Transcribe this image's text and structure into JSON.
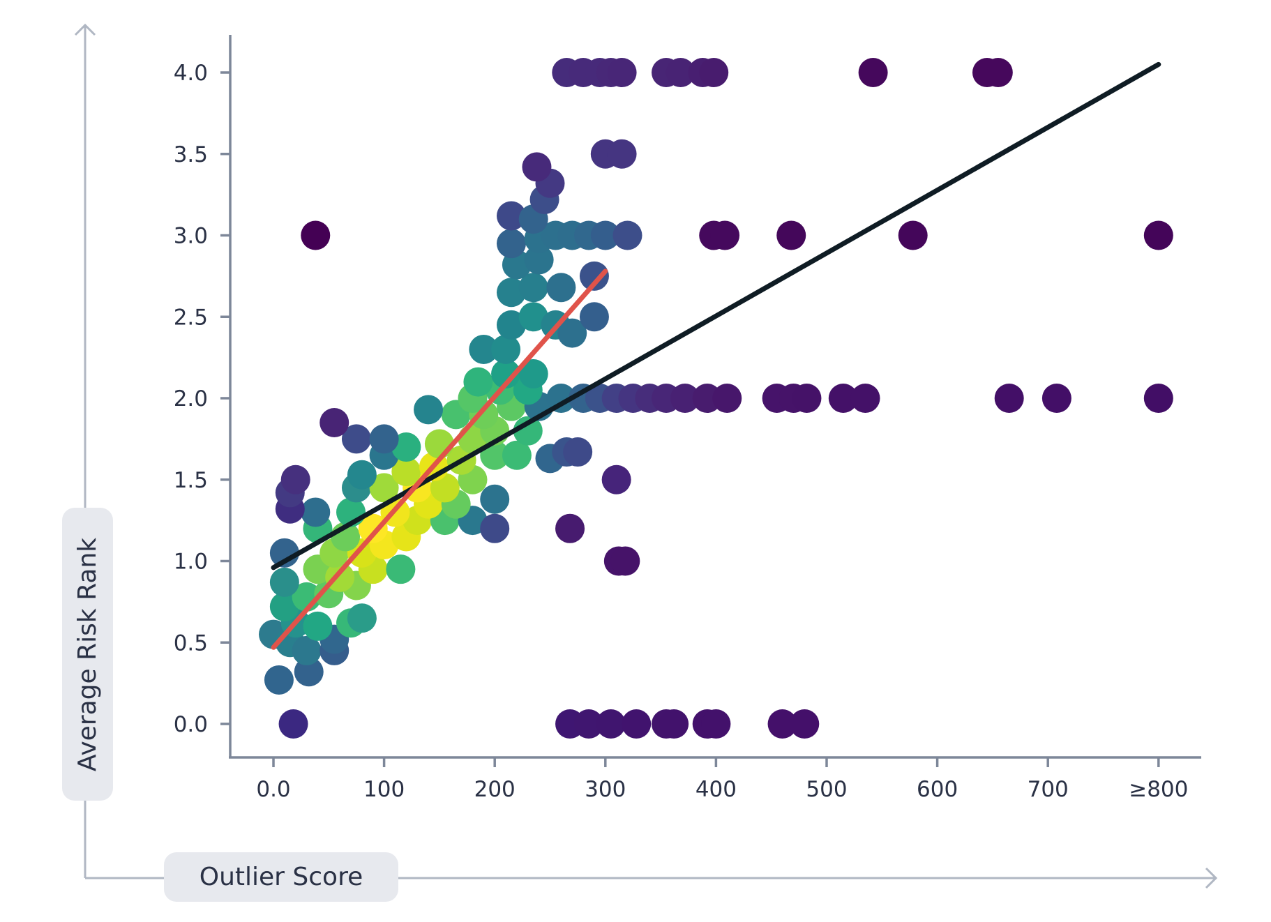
{
  "chart_data": {
    "type": "scatter",
    "title": "",
    "xlabel": "Outlier Score",
    "ylabel": "Average Risk Rank",
    "x_ticks": [
      0,
      100,
      200,
      300,
      400,
      500,
      600,
      700,
      800
    ],
    "x_tick_labels": [
      "0.0",
      "100",
      "200",
      "300",
      "400",
      "500",
      "600",
      "700",
      "≥800"
    ],
    "y_ticks": [
      0.0,
      0.5,
      1.0,
      1.5,
      2.0,
      2.5,
      3.0,
      3.5,
      4.0
    ],
    "y_tick_labels": [
      "0.0",
      "0.5",
      "1.0",
      "1.5",
      "2.0",
      "2.5",
      "3.0",
      "3.5",
      "4.0"
    ],
    "xlim": [
      -40,
      835
    ],
    "ylim": [
      -0.2,
      4.22
    ],
    "grid": false,
    "legend": null,
    "colormap": "viridis (point density)",
    "colors": {
      "axis": "#7d8799",
      "outer_axis": "#b0b7c3",
      "label_pill": "#e7e9ee",
      "text": "#2a3145",
      "fit_overall": "#0f1c24",
      "fit_dense": "#e0534a"
    },
    "series": [
      {
        "name": "points",
        "points": [
          {
            "x": 18,
            "y": 0.0,
            "c": "#3b2881"
          },
          {
            "x": 268,
            "y": 0.0,
            "c": "#3f1672"
          },
          {
            "x": 285,
            "y": 0.0,
            "c": "#401670"
          },
          {
            "x": 305,
            "y": 0.0,
            "c": "#40156f"
          },
          {
            "x": 328,
            "y": 0.0,
            "c": "#41136e"
          },
          {
            "x": 355,
            "y": 0.0,
            "c": "#42136c"
          },
          {
            "x": 362,
            "y": 0.0,
            "c": "#42126c"
          },
          {
            "x": 392,
            "y": 0.0,
            "c": "#43116b"
          },
          {
            "x": 400,
            "y": 0.0,
            "c": "#43116b"
          },
          {
            "x": 460,
            "y": 0.0,
            "c": "#44106a"
          },
          {
            "x": 480,
            "y": 0.0,
            "c": "#44106a"
          },
          {
            "x": 5,
            "y": 0.27,
            "c": "#31658e"
          },
          {
            "x": 32,
            "y": 0.32,
            "c": "#33628d"
          },
          {
            "x": 0,
            "y": 0.55,
            "c": "#2d7b8e"
          },
          {
            "x": 15,
            "y": 0.5,
            "c": "#297f8e"
          },
          {
            "x": 30,
            "y": 0.45,
            "c": "#2c788e"
          },
          {
            "x": 55,
            "y": 0.45,
            "c": "#355d8c"
          },
          {
            "x": 55,
            "y": 0.52,
            "c": "#31678e"
          },
          {
            "x": 20,
            "y": 0.62,
            "c": "#25928d"
          },
          {
            "x": 40,
            "y": 0.6,
            "c": "#22a784"
          },
          {
            "x": 70,
            "y": 0.62,
            "c": "#37b878"
          },
          {
            "x": 80,
            "y": 0.65,
            "c": "#2a9c89"
          },
          {
            "x": 10,
            "y": 0.72,
            "c": "#23a083"
          },
          {
            "x": 30,
            "y": 0.78,
            "c": "#3bbb75"
          },
          {
            "x": 50,
            "y": 0.8,
            "c": "#5ec962"
          },
          {
            "x": 75,
            "y": 0.85,
            "c": "#84d44b"
          },
          {
            "x": 10,
            "y": 0.87,
            "c": "#2a8f8b"
          },
          {
            "x": 40,
            "y": 0.95,
            "c": "#7ad151"
          },
          {
            "x": 60,
            "y": 0.9,
            "c": "#a2da37"
          },
          {
            "x": 90,
            "y": 0.95,
            "c": "#c8e020"
          },
          {
            "x": 115,
            "y": 0.95,
            "c": "#3aba76"
          },
          {
            "x": 10,
            "y": 1.05,
            "c": "#33638d"
          },
          {
            "x": 55,
            "y": 1.05,
            "c": "#8fd744"
          },
          {
            "x": 80,
            "y": 1.05,
            "c": "#d8e219"
          },
          {
            "x": 100,
            "y": 1.1,
            "c": "#f4e61e"
          },
          {
            "x": 120,
            "y": 1.15,
            "c": "#e6e419"
          },
          {
            "x": 65,
            "y": 1.15,
            "c": "#6ccd5a"
          },
          {
            "x": 40,
            "y": 1.2,
            "c": "#34b679"
          },
          {
            "x": 90,
            "y": 1.2,
            "c": "#fde725"
          },
          {
            "x": 130,
            "y": 1.25,
            "c": "#d0e11c"
          },
          {
            "x": 155,
            "y": 1.25,
            "c": "#4ac16d"
          },
          {
            "x": 180,
            "y": 1.25,
            "c": "#2a788e"
          },
          {
            "x": 200,
            "y": 1.2,
            "c": "#3e4a89"
          },
          {
            "x": 38,
            "y": 1.3,
            "c": "#2e6e8e"
          },
          {
            "x": 70,
            "y": 1.3,
            "c": "#2db27d"
          },
          {
            "x": 110,
            "y": 1.3,
            "c": "#f1e51d"
          },
          {
            "x": 140,
            "y": 1.35,
            "c": "#e2e418"
          },
          {
            "x": 165,
            "y": 1.35,
            "c": "#65cb5e"
          },
          {
            "x": 15,
            "y": 1.32,
            "c": "#3f2d80"
          },
          {
            "x": 15,
            "y": 1.42,
            "c": "#433a83"
          },
          {
            "x": 20,
            "y": 1.5,
            "c": "#46307e"
          },
          {
            "x": 75,
            "y": 1.45,
            "c": "#2c8d8c"
          },
          {
            "x": 100,
            "y": 1.45,
            "c": "#9fda3a"
          },
          {
            "x": 130,
            "y": 1.45,
            "c": "#f8e621"
          },
          {
            "x": 155,
            "y": 1.45,
            "c": "#c2df23"
          },
          {
            "x": 180,
            "y": 1.5,
            "c": "#7fd34e"
          },
          {
            "x": 200,
            "y": 1.38,
            "c": "#2c738e"
          },
          {
            "x": 80,
            "y": 1.53,
            "c": "#24878e"
          },
          {
            "x": 120,
            "y": 1.55,
            "c": "#bade28"
          },
          {
            "x": 145,
            "y": 1.58,
            "c": "#e8e419"
          },
          {
            "x": 170,
            "y": 1.62,
            "c": "#a8db34"
          },
          {
            "x": 200,
            "y": 1.65,
            "c": "#52c569"
          },
          {
            "x": 220,
            "y": 1.65,
            "c": "#3bbb75"
          },
          {
            "x": 100,
            "y": 1.65,
            "c": "#2a768e"
          },
          {
            "x": 120,
            "y": 1.7,
            "c": "#2ab07f"
          },
          {
            "x": 150,
            "y": 1.72,
            "c": "#9bd93c"
          },
          {
            "x": 180,
            "y": 1.75,
            "c": "#8ed645"
          },
          {
            "x": 200,
            "y": 1.8,
            "c": "#74d055"
          },
          {
            "x": 230,
            "y": 1.8,
            "c": "#35b779"
          },
          {
            "x": 75,
            "y": 1.75,
            "c": "#3e4c8a"
          },
          {
            "x": 100,
            "y": 1.75,
            "c": "#33638d"
          },
          {
            "x": 55,
            "y": 1.85,
            "c": "#482475"
          },
          {
            "x": 165,
            "y": 1.9,
            "c": "#48c16e"
          },
          {
            "x": 190,
            "y": 1.9,
            "c": "#6ece58"
          },
          {
            "x": 215,
            "y": 1.95,
            "c": "#5cc863"
          },
          {
            "x": 240,
            "y": 1.95,
            "c": "#2c738e"
          },
          {
            "x": 140,
            "y": 1.93,
            "c": "#25848e"
          },
          {
            "x": 180,
            "y": 2.0,
            "c": "#55c667"
          },
          {
            "x": 205,
            "y": 2.05,
            "c": "#3dbc74"
          },
          {
            "x": 230,
            "y": 2.05,
            "c": "#22a884"
          },
          {
            "x": 185,
            "y": 2.1,
            "c": "#2fb47c"
          },
          {
            "x": 210,
            "y": 2.15,
            "c": "#1fa187"
          },
          {
            "x": 235,
            "y": 2.15,
            "c": "#1f9a8a"
          },
          {
            "x": 190,
            "y": 2.3,
            "c": "#24868e"
          },
          {
            "x": 210,
            "y": 2.3,
            "c": "#228c8d"
          },
          {
            "x": 260,
            "y": 2.0,
            "c": "#2c728e"
          },
          {
            "x": 280,
            "y": 2.0,
            "c": "#33638d"
          },
          {
            "x": 295,
            "y": 2.0,
            "c": "#3b528b"
          },
          {
            "x": 310,
            "y": 2.0,
            "c": "#424086"
          },
          {
            "x": 325,
            "y": 2.0,
            "c": "#453581"
          },
          {
            "x": 340,
            "y": 2.0,
            "c": "#472d7b"
          },
          {
            "x": 355,
            "y": 2.0,
            "c": "#482677"
          },
          {
            "x": 372,
            "y": 2.0,
            "c": "#482173"
          },
          {
            "x": 392,
            "y": 2.0,
            "c": "#481c6e"
          },
          {
            "x": 410,
            "y": 2.0,
            "c": "#47176b"
          },
          {
            "x": 455,
            "y": 2.0,
            "c": "#46136a"
          },
          {
            "x": 470,
            "y": 2.0,
            "c": "#461369"
          },
          {
            "x": 482,
            "y": 2.0,
            "c": "#451268"
          },
          {
            "x": 515,
            "y": 2.0,
            "c": "#441168"
          },
          {
            "x": 535,
            "y": 2.0,
            "c": "#441168"
          },
          {
            "x": 665,
            "y": 2.0,
            "c": "#430f67"
          },
          {
            "x": 708,
            "y": 2.0,
            "c": "#430f67"
          },
          {
            "x": 800,
            "y": 2.0,
            "c": "#420e66"
          },
          {
            "x": 250,
            "y": 1.63,
            "c": "#31668e"
          },
          {
            "x": 265,
            "y": 1.67,
            "c": "#3a548c"
          },
          {
            "x": 275,
            "y": 1.67,
            "c": "#3e4a89"
          },
          {
            "x": 310,
            "y": 1.5,
            "c": "#46247a"
          },
          {
            "x": 268,
            "y": 1.2,
            "c": "#471b6f"
          },
          {
            "x": 312,
            "y": 1.0,
            "c": "#46136a"
          },
          {
            "x": 318,
            "y": 1.0,
            "c": "#461369"
          },
          {
            "x": 215,
            "y": 2.45,
            "c": "#22848d"
          },
          {
            "x": 235,
            "y": 2.5,
            "c": "#21908d"
          },
          {
            "x": 255,
            "y": 2.45,
            "c": "#25838e"
          },
          {
            "x": 270,
            "y": 2.4,
            "c": "#2d708e"
          },
          {
            "x": 290,
            "y": 2.5,
            "c": "#345f8d"
          },
          {
            "x": 215,
            "y": 2.65,
            "c": "#26818e"
          },
          {
            "x": 235,
            "y": 2.68,
            "c": "#277f8e"
          },
          {
            "x": 260,
            "y": 2.68,
            "c": "#2d708e"
          },
          {
            "x": 220,
            "y": 2.82,
            "c": "#2a788e"
          },
          {
            "x": 240,
            "y": 2.85,
            "c": "#2b748e"
          },
          {
            "x": 290,
            "y": 2.75,
            "c": "#3b528b"
          },
          {
            "x": 215,
            "y": 2.95,
            "c": "#33638d"
          },
          {
            "x": 240,
            "y": 2.98,
            "c": "#2c728e"
          },
          {
            "x": 255,
            "y": 3.0,
            "c": "#2d708e"
          },
          {
            "x": 270,
            "y": 3.0,
            "c": "#2e6e8e"
          },
          {
            "x": 285,
            "y": 3.0,
            "c": "#31688e"
          },
          {
            "x": 300,
            "y": 3.0,
            "c": "#345e8d"
          },
          {
            "x": 320,
            "y": 3.0,
            "c": "#3d4e8a"
          },
          {
            "x": 215,
            "y": 3.12,
            "c": "#3e4989"
          },
          {
            "x": 235,
            "y": 3.1,
            "c": "#33638d"
          },
          {
            "x": 245,
            "y": 3.22,
            "c": "#3d4e8a"
          },
          {
            "x": 250,
            "y": 3.32,
            "c": "#443983"
          },
          {
            "x": 238,
            "y": 3.42,
            "c": "#472a7a"
          },
          {
            "x": 300,
            "y": 3.5,
            "c": "#453581"
          },
          {
            "x": 315,
            "y": 3.5,
            "c": "#453581"
          },
          {
            "x": 38,
            "y": 3.0,
            "c": "#440154"
          },
          {
            "x": 398,
            "y": 3.0,
            "c": "#45095d"
          },
          {
            "x": 408,
            "y": 3.0,
            "c": "#45095d"
          },
          {
            "x": 468,
            "y": 3.0,
            "c": "#44075a"
          },
          {
            "x": 578,
            "y": 3.0,
            "c": "#44065a"
          },
          {
            "x": 800,
            "y": 3.0,
            "c": "#440559"
          },
          {
            "x": 265,
            "y": 4.0,
            "c": "#462c7b"
          },
          {
            "x": 280,
            "y": 4.0,
            "c": "#472a7a"
          },
          {
            "x": 295,
            "y": 4.0,
            "c": "#472a7a"
          },
          {
            "x": 305,
            "y": 4.0,
            "c": "#482878"
          },
          {
            "x": 315,
            "y": 4.0,
            "c": "#482677"
          },
          {
            "x": 355,
            "y": 4.0,
            "c": "#482575"
          },
          {
            "x": 368,
            "y": 4.0,
            "c": "#482374"
          },
          {
            "x": 388,
            "y": 4.0,
            "c": "#481f71"
          },
          {
            "x": 398,
            "y": 4.0,
            "c": "#481c6e"
          },
          {
            "x": 542,
            "y": 4.0,
            "c": "#45085c"
          },
          {
            "x": 645,
            "y": 4.0,
            "c": "#46085c"
          },
          {
            "x": 655,
            "y": 4.0,
            "c": "#46085c"
          }
        ]
      }
    ],
    "fit_lines": [
      {
        "name": "overall fit",
        "color": "#0f1c24",
        "x": [
          0,
          800
        ],
        "y": [
          0.96,
          4.05
        ]
      },
      {
        "name": "dense-region fit",
        "color": "#e0534a",
        "x": [
          0,
          300
        ],
        "y": [
          0.47,
          2.78
        ]
      }
    ]
  },
  "labels": {
    "x_axis": "Outlier Score",
    "y_axis": "Average Risk Rank"
  }
}
